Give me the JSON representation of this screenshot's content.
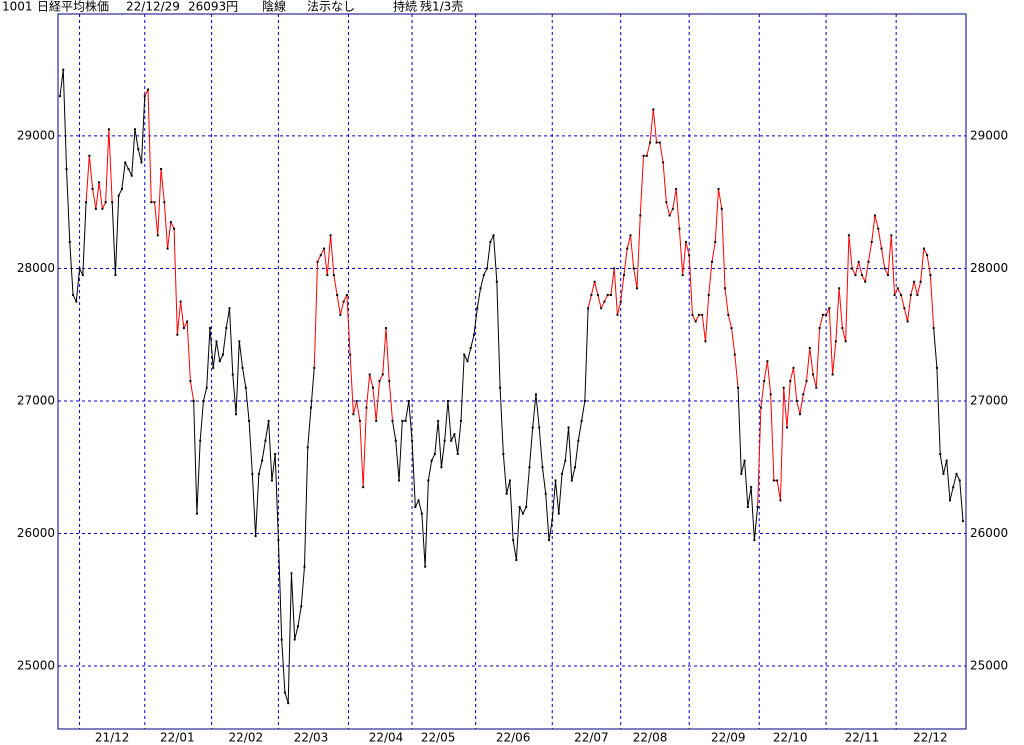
{
  "chart_data": {
    "type": "line",
    "header": {
      "code": "1001",
      "name": "日経平均株価",
      "date": "22/12/29",
      "price": "26093円",
      "candle": "陰線",
      "signal": "法示なし",
      "state": "持続",
      "position": "残1/3売"
    },
    "categories": [
      null,
      null,
      null,
      null,
      null,
      null,
      null,
      null,
      null,
      null,
      null,
      null,
      null,
      null,
      null,
      null,
      "21/12",
      null,
      null,
      null,
      null,
      null,
      null,
      null,
      null,
      null,
      null,
      null,
      null,
      null,
      null,
      null,
      null,
      null,
      null,
      null,
      "22/01",
      null,
      null,
      null,
      null,
      null,
      null,
      null,
      null,
      null,
      null,
      null,
      null,
      null,
      null,
      null,
      null,
      null,
      null,
      null,
      null,
      "22/02",
      null,
      null,
      null,
      null,
      null,
      null,
      null,
      null,
      null,
      null,
      null,
      null,
      null,
      null,
      null,
      null,
      null,
      null,
      null,
      "22/03",
      null,
      null,
      null,
      null,
      null,
      null,
      null,
      null,
      null,
      null,
      null,
      null,
      null,
      null,
      null,
      null,
      null,
      null,
      null,
      null,
      null,
      null,
      "22/04",
      null,
      null,
      null,
      null,
      null,
      null,
      null,
      null,
      null,
      null,
      null,
      null,
      null,
      null,
      null,
      "22/05",
      null,
      null,
      null,
      null,
      null,
      null,
      null,
      null,
      null,
      null,
      null,
      null,
      null,
      null,
      null,
      null,
      null,
      null,
      null,
      null,
      null,
      null,
      "22/06",
      null,
      null,
      null,
      null,
      null,
      null,
      null,
      null,
      null,
      null,
      null,
      null,
      null,
      null,
      null,
      null,
      null,
      null,
      null,
      null,
      null,
      null,
      null,
      "22/07",
      null,
      null,
      null,
      null,
      null,
      null,
      null,
      null,
      null,
      null,
      null,
      null,
      null,
      null,
      null,
      null,
      null,
      "22/08",
      null,
      null,
      null,
      null,
      null,
      null,
      null,
      null,
      null,
      null,
      null,
      null,
      null,
      null,
      null,
      null,
      null,
      null,
      null,
      null,
      null,
      null,
      null,
      "22/09",
      null,
      null,
      null,
      null,
      null,
      null,
      null,
      null,
      null,
      null,
      null,
      null,
      null,
      null,
      null,
      null,
      null,
      null,
      "22/10",
      null,
      null,
      null,
      null,
      null,
      null,
      null,
      null,
      null,
      null,
      null,
      null,
      null,
      null,
      null,
      null,
      null,
      null,
      null,
      null,
      null,
      "22/11",
      null,
      null,
      null,
      null,
      null,
      null,
      null,
      null,
      null,
      null,
      null,
      null,
      null,
      null,
      null,
      null,
      null,
      null,
      null,
      null,
      "22/12",
      null,
      null,
      null,
      null,
      null,
      null,
      null,
      null,
      null,
      null
    ],
    "values": [
      29300,
      29500,
      28750,
      28200,
      27800,
      27750,
      28000,
      27950,
      28500,
      28850,
      28600,
      28450,
      28650,
      28450,
      28500,
      29050,
      28500,
      27950,
      28550,
      28600,
      28800,
      28750,
      28700,
      29050,
      28900,
      28800,
      29300,
      29350,
      28500,
      28500,
      28250,
      28750,
      28500,
      28150,
      28350,
      28300,
      27500,
      27750,
      27550,
      27600,
      27150,
      27000,
      26150,
      26700,
      27000,
      27100,
      27550,
      27250,
      27450,
      27300,
      27350,
      27550,
      27700,
      27200,
      26900,
      27450,
      27250,
      27100,
      26850,
      26450,
      25980,
      26450,
      26550,
      26700,
      26850,
      26400,
      26600,
      25950,
      25200,
      24800,
      24720,
      25700,
      25200,
      25300,
      25450,
      25750,
      26650,
      26950,
      27250,
      28050,
      28100,
      28150,
      27950,
      28250,
      27950,
      27800,
      27650,
      27750,
      27800,
      27350,
      26900,
      27000,
      26850,
      26350,
      26950,
      27200,
      27100,
      26850,
      27150,
      27200,
      27550,
      27150,
      26850,
      26700,
      26400,
      26850,
      26850,
      27000,
      26700,
      26200,
      26250,
      26150,
      25750,
      26400,
      26550,
      26600,
      26850,
      26500,
      26700,
      27000,
      26700,
      26750,
      26600,
      26850,
      27350,
      27300,
      27400,
      27500,
      27700,
      27850,
      27950,
      28000,
      28200,
      28250,
      27900,
      27100,
      26600,
      26300,
      26400,
      25950,
      25800,
      26200,
      26150,
      26200,
      26500,
      26800,
      27050,
      26800,
      26500,
      26300,
      25950,
      26100,
      26400,
      26150,
      26450,
      26550,
      26800,
      26400,
      26500,
      26700,
      26850,
      27000,
      27700,
      27800,
      27900,
      27800,
      27700,
      27750,
      27800,
      27800,
      28000,
      27650,
      27750,
      27950,
      28150,
      28250,
      28000,
      27850,
      28400,
      28850,
      28850,
      28950,
      29200,
      28950,
      28950,
      28800,
      28500,
      28400,
      28450,
      28600,
      28300,
      27950,
      28200,
      28100,
      27650,
      27600,
      27650,
      27650,
      27450,
      27800,
      28050,
      28200,
      28600,
      28450,
      27850,
      27650,
      27550,
      27350,
      27100,
      26450,
      26550,
      26200,
      26350,
      25950,
      26200,
      26950,
      27150,
      27300,
      27050,
      26400,
      26400,
      26250,
      27100,
      26800,
      27150,
      27250,
      27000,
      26900,
      27050,
      27150,
      27400,
      27200,
      27100,
      27550,
      27650,
      27650,
      27700,
      27200,
      27450,
      27850,
      27550,
      27450,
      28250,
      28000,
      27950,
      28050,
      27950,
      27900,
      28050,
      28200,
      28400,
      28300,
      28150,
      28000,
      27950,
      28250,
      27800,
      27850,
      27800,
      27700,
      27600,
      27800,
      27900,
      27800,
      27900,
      28150,
      28100,
      27950,
      27550,
      27250,
      26600,
      26450,
      26550,
      26250,
      26350,
      26450,
      26400,
      26093
    ],
    "line_colors": [
      "#000",
      "#000",
      "#000",
      "#000",
      "#000",
      "#000",
      "#000",
      "#000",
      "#000",
      "#f00",
      "#f00",
      "#f00",
      "#f00",
      "#f00",
      "#f00",
      "#f00",
      "#f00",
      "#000",
      "#000",
      "#000",
      "#000",
      "#000",
      "#000",
      "#000",
      "#000",
      "#000",
      "#000",
      "#f00",
      "#f00",
      "#f00",
      "#f00",
      "#f00",
      "#f00",
      "#f00",
      "#f00",
      "#f00",
      "#f00",
      "#f00",
      "#f00",
      "#f00",
      "#f00",
      "#f00",
      "#000",
      "#000",
      "#000",
      "#000",
      "#000",
      "#000",
      "#000",
      "#000",
      "#000",
      "#000",
      "#000",
      "#000",
      "#000",
      "#000",
      "#000",
      "#000",
      "#000",
      "#000",
      "#000",
      "#000",
      "#000",
      "#000",
      "#000",
      "#000",
      "#000",
      "#000",
      "#000",
      "#000",
      "#000",
      "#000",
      "#000",
      "#000",
      "#000",
      "#000",
      "#000",
      "#000",
      "#000",
      "#f00",
      "#f00",
      "#f00",
      "#f00",
      "#f00",
      "#f00",
      "#f00",
      "#f00",
      "#f00",
      "#f00",
      "#f00",
      "#f00",
      "#f00",
      "#f00",
      "#f00",
      "#f00",
      "#f00",
      "#f00",
      "#f00",
      "#f00",
      "#f00",
      "#f00",
      "#f00",
      "#f00",
      "#000",
      "#000",
      "#000",
      "#000",
      "#000",
      "#000",
      "#000",
      "#000",
      "#000",
      "#000",
      "#000",
      "#000",
      "#000",
      "#000",
      "#000",
      "#000",
      "#000",
      "#000",
      "#000",
      "#000",
      "#000",
      "#000",
      "#000",
      "#000",
      "#000",
      "#000",
      "#000",
      "#000",
      "#000",
      "#000",
      "#000",
      "#000",
      "#000",
      "#000",
      "#000",
      "#000",
      "#000",
      "#000",
      "#000",
      "#000",
      "#000",
      "#000",
      "#000",
      "#000",
      "#000",
      "#000",
      "#000",
      "#000",
      "#000",
      "#000",
      "#000",
      "#000",
      "#000",
      "#000",
      "#000",
      "#000",
      "#000",
      "#000",
      "#000",
      "#000",
      "#f00",
      "#f00",
      "#f00",
      "#f00",
      "#f00",
      "#f00",
      "#f00",
      "#f00",
      "#f00",
      "#f00",
      "#f00",
      "#f00",
      "#f00",
      "#f00",
      "#f00",
      "#f00",
      "#f00",
      "#f00",
      "#f00",
      "#f00",
      "#f00",
      "#f00",
      "#f00",
      "#f00",
      "#f00",
      "#f00",
      "#f00",
      "#f00",
      "#f00",
      "#f00",
      "#f00",
      "#f00",
      "#f00",
      "#f00",
      "#f00",
      "#f00",
      "#f00",
      "#f00",
      "#f00",
      "#f00",
      "#f00",
      "#f00",
      "#f00",
      "#f00",
      "#f00",
      "#f00",
      "#000",
      "#000",
      "#000",
      "#000",
      "#000",
      "#000",
      "#f00",
      "#f00",
      "#f00",
      "#f00",
      "#f00",
      "#f00",
      "#f00",
      "#f00",
      "#f00",
      "#f00",
      "#f00",
      "#f00",
      "#f00",
      "#f00",
      "#f00",
      "#f00",
      "#f00",
      "#f00",
      "#f00",
      "#f00",
      "#f00",
      "#f00",
      "#f00",
      "#f00",
      "#f00",
      "#f00",
      "#f00",
      "#f00",
      "#f00",
      "#f00",
      "#f00",
      "#f00",
      "#f00",
      "#f00",
      "#f00",
      "#f00",
      "#f00",
      "#f00",
      "#f00",
      "#f00",
      "#f00",
      "#f00",
      "#f00",
      "#f00",
      "#f00",
      "#f00",
      "#f00",
      "#f00",
      "#f00",
      "#f00",
      "#f00",
      "#f00",
      "#f00",
      "#f00",
      "#000",
      "#000",
      "#000",
      "#000",
      "#000",
      "#000",
      "#000",
      "#000",
      "#000"
    ],
    "marker_color": "#000000",
    "ylim": [
      24525,
      29920
    ],
    "yticks": [
      25000,
      26000,
      27000,
      28000,
      29000
    ],
    "grid": true,
    "grid_color": "#0000cc",
    "frame_color": "#000080"
  }
}
